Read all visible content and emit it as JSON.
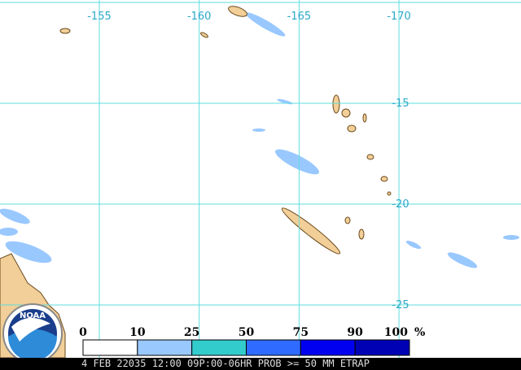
{
  "map": {
    "lon_lines": [
      -155,
      -160,
      -165,
      -170
    ],
    "lat_lines": [
      -15,
      -20,
      -25
    ],
    "legend": {
      "thresholds": [
        0,
        10,
        25,
        50,
        75,
        90,
        100
      ],
      "unit": "%",
      "colors": [
        "#ffffff",
        "#99c8ff",
        "#33cccc",
        "#2f6bff",
        "#0000f0",
        "#0000b4",
        "#00008c"
      ]
    },
    "logo": "NOAA",
    "footer": "4 FEB 22035 12:00 09P:00-06HR PROB >= 50 MM ETRAP"
  }
}
